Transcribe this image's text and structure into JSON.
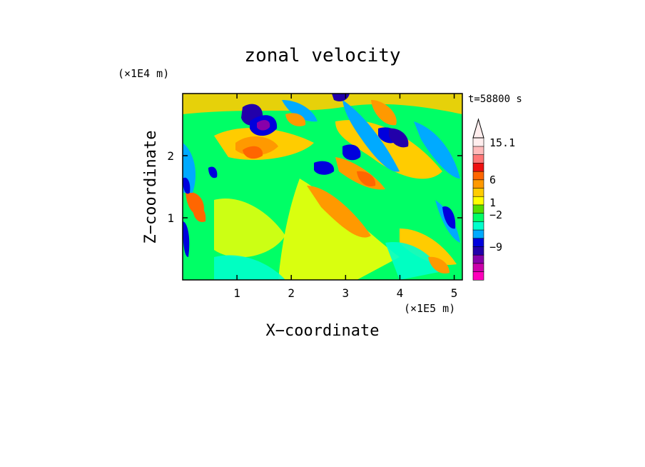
{
  "chart_data": {
    "type": "heatmap",
    "title": "zonal velocity",
    "xlabel": "X−coordinate",
    "ylabel": "Z−coordinate",
    "x_unit": "(×1E5 m)",
    "y_unit": "(×1E4 m)",
    "time_label": "t=58800 s",
    "xlim": [
      0,
      5.15
    ],
    "ylim": [
      0,
      3.0
    ],
    "x_ticks": [
      1,
      2,
      3,
      4,
      5
    ],
    "y_ticks": [
      1,
      2
    ],
    "x_tick_labels": [
      "1",
      "2",
      "3",
      "4",
      "5"
    ],
    "y_tick_labels": [
      "1",
      "2"
    ],
    "colorbar": {
      "max_label": "15.1",
      "levels_labeled": [
        "15.1",
        "6",
        "1",
        "−2",
        "−9"
      ],
      "colors": [
        "#ff00bb",
        "#cc00aa",
        "#8800aa",
        "#2200aa",
        "#0000dd",
        "#00aaff",
        "#00ffcc",
        "#00ff66",
        "#55dd00",
        "#ffff00",
        "#ffcc00",
        "#ff9900",
        "#ff6600",
        "#ee1111",
        "#ff7777",
        "#ffbbbb",
        "#ffeeee"
      ]
    }
  }
}
